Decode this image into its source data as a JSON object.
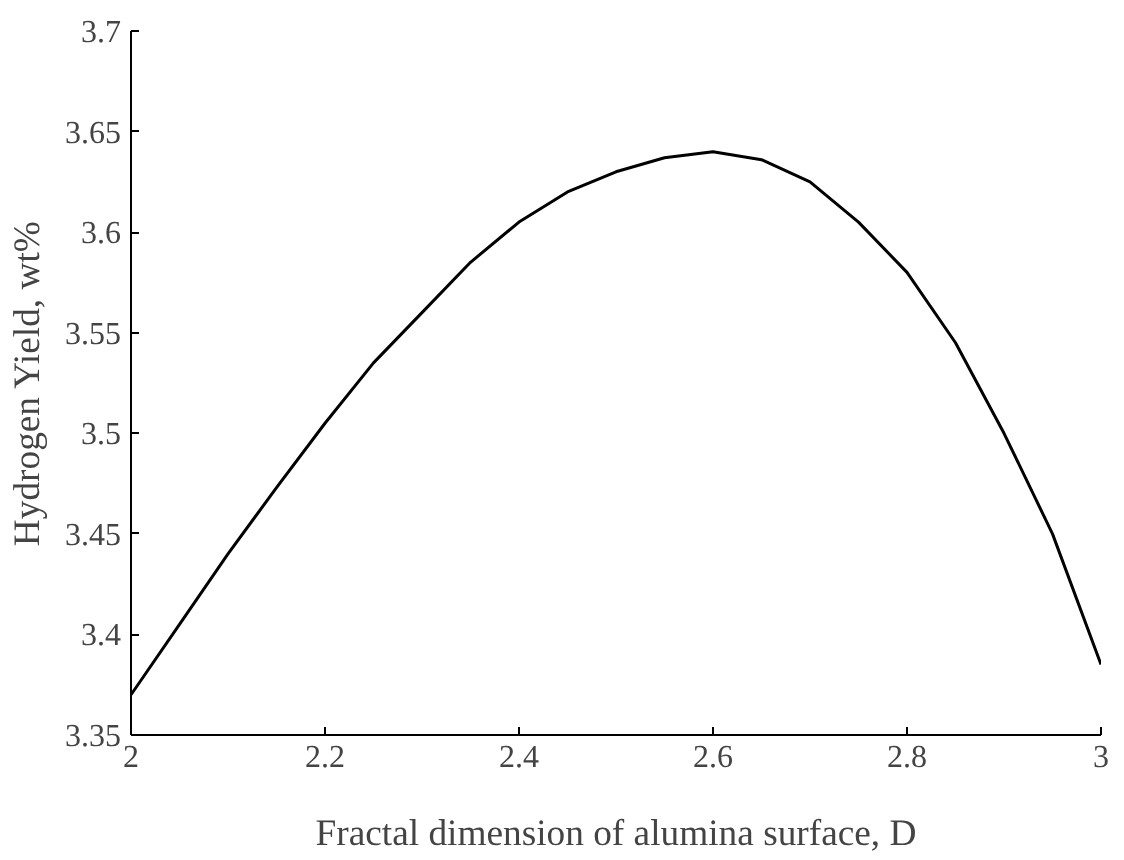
{
  "chart_data": {
    "type": "line",
    "xlabel": "Fractal dimension of alumina surface, D",
    "ylabel": "Hydrogen Yield, wt%",
    "x": [
      2.0,
      2.05,
      2.1,
      2.15,
      2.2,
      2.25,
      2.3,
      2.35,
      2.4,
      2.45,
      2.5,
      2.55,
      2.6,
      2.65,
      2.7,
      2.75,
      2.8,
      2.85,
      2.9,
      2.95,
      3.0
    ],
    "series": [
      {
        "color": "#000000",
        "values": [
          3.37,
          3.405,
          3.44,
          3.473,
          3.505,
          3.535,
          3.56,
          3.585,
          3.605,
          3.62,
          3.63,
          3.637,
          3.64,
          3.636,
          3.625,
          3.605,
          3.58,
          3.545,
          3.5,
          3.45,
          3.385
        ]
      }
    ],
    "xlim": [
      2,
      3
    ],
    "xticks": [
      2,
      {
        "value": 2.2,
        "label": "2.2"
      },
      {
        "value": 2.4,
        "label": "2.4"
      },
      {
        "value": 2.6,
        "label": "2.6"
      },
      {
        "value": 2.8,
        "label": "2.8"
      },
      3
    ],
    "ylim": [
      3.35,
      3.7
    ],
    "yticks": [
      3.35,
      3.4,
      3.45,
      3.5,
      3.55,
      3.6,
      3.65,
      3.7
    ],
    "grid": false,
    "marker": "none",
    "line_style": "solid"
  }
}
